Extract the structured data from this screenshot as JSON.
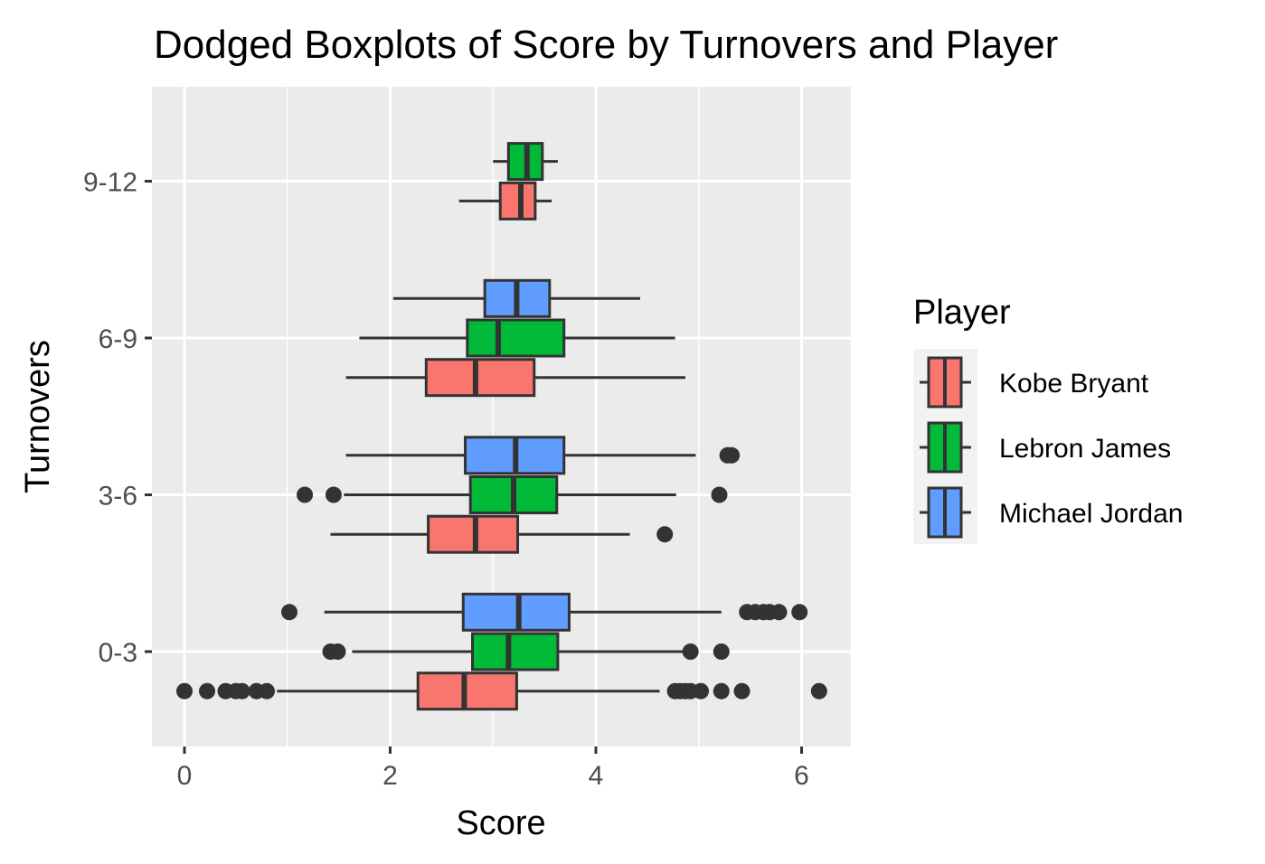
{
  "chart_data": {
    "type": "boxplot",
    "orientation": "horizontal",
    "title": "Dodged Boxplots of Score by Turnovers and Player",
    "xlabel": "Score",
    "ylabel": "Turnovers",
    "xlim": [
      -0.3,
      6.5
    ],
    "xticks": [
      0,
      2,
      4,
      6
    ],
    "categories": [
      "0-3",
      "3-6",
      "6-9",
      "9-12"
    ],
    "grid": true,
    "legend": {
      "title": "Player",
      "position": "right",
      "entries": [
        "Kobe Bryant",
        "Lebron James",
        "Michael Jordan"
      ]
    },
    "colors": {
      "Kobe Bryant": "#F8766D",
      "Lebron James": "#00BA38",
      "Michael Jordan": "#619CFF",
      "panel": "#EBEBEB",
      "grid": "#FFFFFF",
      "stroke": "#333333"
    },
    "series": [
      {
        "name": "Kobe Bryant",
        "boxes": [
          {
            "category": "0-3",
            "whisker_low": 0.9,
            "q1": 2.27,
            "median": 2.72,
            "q3": 3.23,
            "whisker_high": 4.62,
            "outliers": [
              0.0,
              0.22,
              0.4,
              0.5,
              0.56,
              0.7,
              0.8,
              4.77,
              4.82,
              4.87,
              4.92,
              5.02,
              5.22,
              5.42,
              6.17
            ]
          },
          {
            "category": "3-6",
            "whisker_low": 1.42,
            "q1": 2.37,
            "median": 2.83,
            "q3": 3.24,
            "whisker_high": 4.33,
            "outliers": [
              4.67
            ]
          },
          {
            "category": "6-9",
            "whisker_low": 1.57,
            "q1": 2.35,
            "median": 2.83,
            "q3": 3.4,
            "whisker_high": 4.87,
            "outliers": []
          },
          {
            "category": "9-12",
            "whisker_low": 2.67,
            "q1": 3.07,
            "median": 3.27,
            "q3": 3.41,
            "whisker_high": 3.57,
            "outliers": []
          }
        ]
      },
      {
        "name": "Lebron James",
        "boxes": [
          {
            "category": "0-3",
            "whisker_low": 1.63,
            "q1": 2.8,
            "median": 3.15,
            "q3": 3.63,
            "whisker_high": 4.87,
            "outliers": [
              1.42,
              1.49,
              4.92,
              5.22
            ]
          },
          {
            "category": "3-6",
            "whisker_low": 1.55,
            "q1": 2.78,
            "median": 3.2,
            "q3": 3.62,
            "whisker_high": 4.78,
            "outliers": [
              1.17,
              1.45,
              5.2
            ]
          },
          {
            "category": "6-9",
            "whisker_low": 1.7,
            "q1": 2.75,
            "median": 3.05,
            "q3": 3.69,
            "whisker_high": 4.77,
            "outliers": []
          },
          {
            "category": "9-12",
            "whisker_low": 3.0,
            "q1": 3.15,
            "median": 3.33,
            "q3": 3.48,
            "whisker_high": 3.63,
            "outliers": []
          }
        ]
      },
      {
        "name": "Michael Jordan",
        "boxes": [
          {
            "category": "0-3",
            "whisker_low": 1.36,
            "q1": 2.71,
            "median": 3.25,
            "q3": 3.74,
            "whisker_high": 5.22,
            "outliers": [
              1.02,
              5.47,
              5.55,
              5.63,
              5.69,
              5.78,
              5.98
            ]
          },
          {
            "category": "3-6",
            "whisker_low": 1.57,
            "q1": 2.73,
            "median": 3.22,
            "q3": 3.69,
            "whisker_high": 4.97,
            "outliers": [
              5.28,
              5.32
            ]
          },
          {
            "category": "6-9",
            "whisker_low": 2.03,
            "q1": 2.92,
            "median": 3.23,
            "q3": 3.55,
            "whisker_high": 4.43,
            "outliers": []
          }
        ]
      }
    ]
  }
}
